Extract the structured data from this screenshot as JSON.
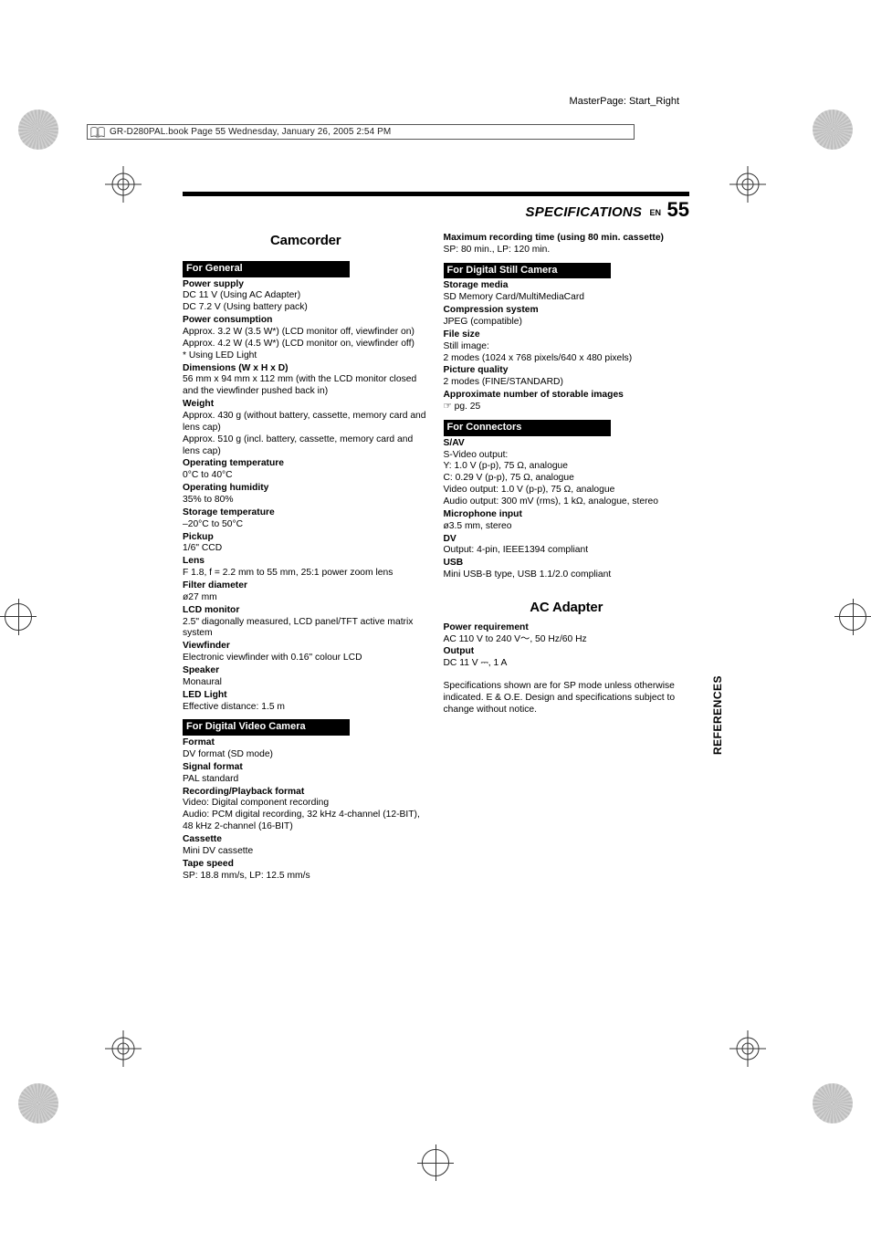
{
  "masterpage": "MasterPage: Start_Right",
  "collation": "GR-D280PAL.book  Page 55  Wednesday, January 26, 2005  2:54 PM",
  "header": {
    "title": "SPECIFICATIONS",
    "lang": "EN",
    "page": "55"
  },
  "sidetab": "REFERENCES",
  "camcorder_heading": "Camcorder",
  "ac_heading": "AC Adapter",
  "sections": {
    "general": {
      "title": "For General",
      "items": [
        {
          "label": "Power supply",
          "value": "DC 11 V (Using AC Adapter)\nDC 7.2 V (Using battery pack)"
        },
        {
          "label": "Power consumption",
          "value": "Approx. 3.2 W (3.5 W*) (LCD monitor off, viewfinder on)\nApprox. 4.2 W (4.5 W*) (LCD monitor on, viewfinder off)\n*  Using LED Light"
        },
        {
          "label": "Dimensions (W x H x D)",
          "value": "56 mm x 94 mm x 112 mm (with the LCD monitor closed and the viewfinder pushed back in)"
        },
        {
          "label": "Weight",
          "value": "Approx. 430 g (without battery, cassette, memory card and lens cap)\nApprox. 510 g (incl. battery, cassette, memory card and lens cap)"
        },
        {
          "label": "Operating temperature",
          "value": "0°C to 40°C"
        },
        {
          "label": "Operating humidity",
          "value": "35% to 80%"
        },
        {
          "label": "Storage temperature",
          "value": "–20°C to 50°C"
        },
        {
          "label": "Pickup",
          "value": "1/6\" CCD"
        },
        {
          "label": "Lens",
          "value": "F 1.8, f = 2.2 mm to 55 mm, 25:1 power zoom lens"
        },
        {
          "label": "Filter diameter",
          "value": "ø27 mm"
        },
        {
          "label": "LCD monitor",
          "value": "2.5\" diagonally measured, LCD panel/TFT active matrix system"
        },
        {
          "label": "Viewfinder",
          "value": "Electronic viewfinder with 0.16\" colour LCD"
        },
        {
          "label": "Speaker",
          "value": "Monaural"
        },
        {
          "label": "LED Light",
          "value": "Effective distance: 1.5 m"
        }
      ]
    },
    "dvcam": {
      "title": "For Digital Video Camera",
      "items": [
        {
          "label": "Format",
          "value": "DV format (SD mode)"
        },
        {
          "label": "Signal format",
          "value": "PAL standard"
        },
        {
          "label": "Recording/Playback format",
          "value": "Video: Digital component recording\nAudio: PCM digital recording, 32 kHz 4-channel (12-BIT), 48 kHz 2-channel (16-BIT)"
        },
        {
          "label": "Cassette",
          "value": "Mini DV cassette"
        },
        {
          "label": "Tape speed",
          "value": "SP: 18.8 mm/s, LP: 12.5 mm/s"
        }
      ]
    },
    "dvcam_right": {
      "items": [
        {
          "label": "Maximum recording time (using 80 min. cassette)",
          "value": "SP: 80 min., LP: 120 min."
        }
      ]
    },
    "still": {
      "title": "For Digital Still Camera",
      "items": [
        {
          "label": "Storage media",
          "value": "SD Memory Card/MultiMediaCard"
        },
        {
          "label": "Compression system",
          "value": "JPEG (compatible)"
        },
        {
          "label": "File size",
          "value": "Still image:\n2 modes (1024 x 768 pixels/640 x 480 pixels)"
        },
        {
          "label": "Picture quality",
          "value": "2 modes (FINE/STANDARD)"
        },
        {
          "label": "Approximate number of storable images",
          "value": "☞ pg. 25"
        }
      ]
    },
    "connectors": {
      "title": "For Connectors",
      "items": [
        {
          "label": "S/AV",
          "value": "S-Video output:\nY: 1.0 V (p-p), 75 Ω, analogue\nC: 0.29 V (p-p), 75 Ω, analogue\nVideo output: 1.0 V (p-p), 75 Ω, analogue\nAudio output: 300 mV (rms), 1 kΩ, analogue, stereo"
        },
        {
          "label": "Microphone input",
          "value": "ø3.5 mm, stereo"
        },
        {
          "label": "DV",
          "value": "Output: 4-pin, IEEE1394 compliant"
        },
        {
          "label": "USB",
          "value": "Mini USB-B type, USB 1.1/2.0 compliant"
        }
      ]
    },
    "ac": {
      "items": [
        {
          "label": "Power requirement",
          "value": "AC 110 V to 240 V〜, 50 Hz/60 Hz"
        },
        {
          "label": "Output",
          "value": "DC 11 V ⎓, 1 A"
        }
      ]
    }
  },
  "footnote": "Specifications shown are for SP mode unless otherwise indicated. E & O.E. Design and specifications subject to change without notice."
}
